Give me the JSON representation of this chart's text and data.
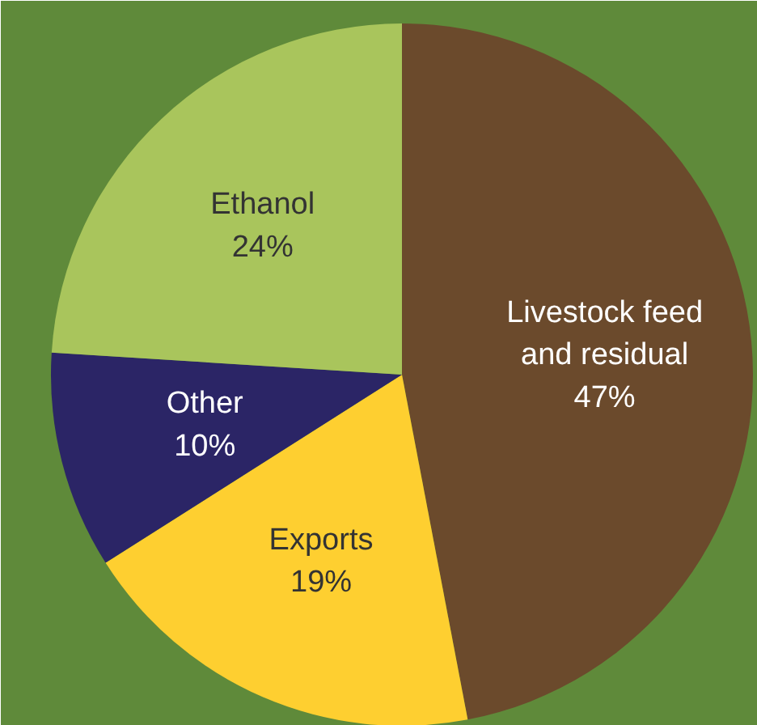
{
  "chart_data": {
    "type": "pie",
    "categories": [
      "Livestock feed and residual",
      "Exports",
      "Other",
      "Ethanol"
    ],
    "values": [
      47,
      19,
      10,
      24
    ],
    "colors": [
      "#6b4a2c",
      "#fecf30",
      "#2b2566",
      "#a9c55c"
    ],
    "value_labels": [
      "47%",
      "19%",
      "10%",
      "24%"
    ]
  }
}
